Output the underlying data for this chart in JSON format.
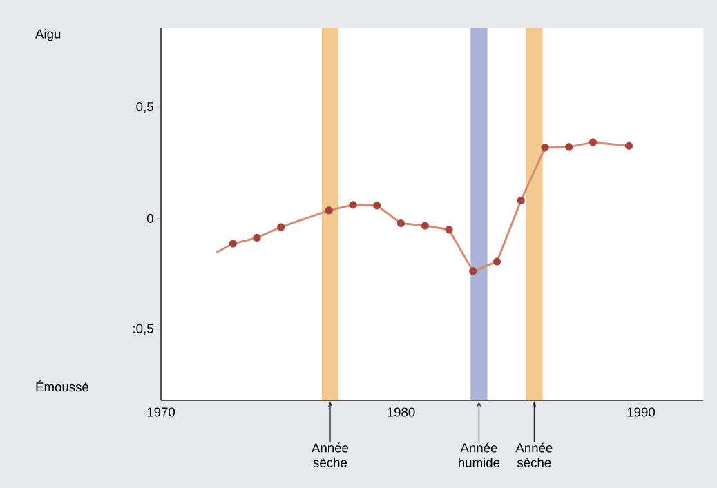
{
  "chart_data": {
    "type": "line",
    "x": [
      1972.3,
      1973,
      1974,
      1975,
      1977,
      1978,
      1979,
      1980,
      1981,
      1982,
      1983,
      1984,
      1985,
      1986,
      1987,
      1988,
      1989.5
    ],
    "series": [
      {
        "type": "line",
        "color": "#d98a70",
        "marker": "none",
        "values": [
          -0.154,
          -0.114,
          -0.087,
          -0.039,
          0.036,
          0.061,
          0.058,
          -0.022,
          -0.033,
          -0.051,
          -0.238,
          -0.195,
          0.081,
          0.319,
          0.322,
          0.343,
          0.327
        ]
      },
      {
        "type": "scatter",
        "color": "#a8403a",
        "marker": "circle",
        "x": [
          1973,
          1974,
          1975,
          1977,
          1978,
          1979,
          1980,
          1981,
          1982,
          1983,
          1984,
          1985,
          1986,
          1987,
          1988,
          1989.5
        ],
        "values": [
          -0.114,
          -0.087,
          -0.039,
          0.036,
          0.061,
          0.058,
          -0.022,
          -0.033,
          -0.051,
          -0.238,
          -0.195,
          0.081,
          0.319,
          0.322,
          0.343,
          0.327
        ]
      }
    ],
    "xlim": [
      1970,
      1992.6
    ],
    "ylim": [
      -0.82,
      0.86
    ],
    "xticks": [
      1970,
      1980,
      1990
    ],
    "yticks": [
      {
        "value": 0.5,
        "label": "0,5"
      },
      {
        "value": 0,
        "label": "0"
      },
      {
        "value": -0.5,
        "label": ":0,5"
      }
    ],
    "bands": [
      {
        "axis": "x",
        "from": 1976.7,
        "to": 1977.4,
        "label": "Année sèche",
        "color": "#f3c98f"
      },
      {
        "axis": "x",
        "from": 1982.9,
        "to": 1983.6,
        "label": "Année humide",
        "color": "#a9b4d8"
      },
      {
        "axis": "x",
        "from": 1985.2,
        "to": 1985.9,
        "label": "Année sèche",
        "color": "#f3c98f"
      }
    ],
    "annotations": [
      "Aigu",
      "Émoussé"
    ],
    "grid": false
  }
}
